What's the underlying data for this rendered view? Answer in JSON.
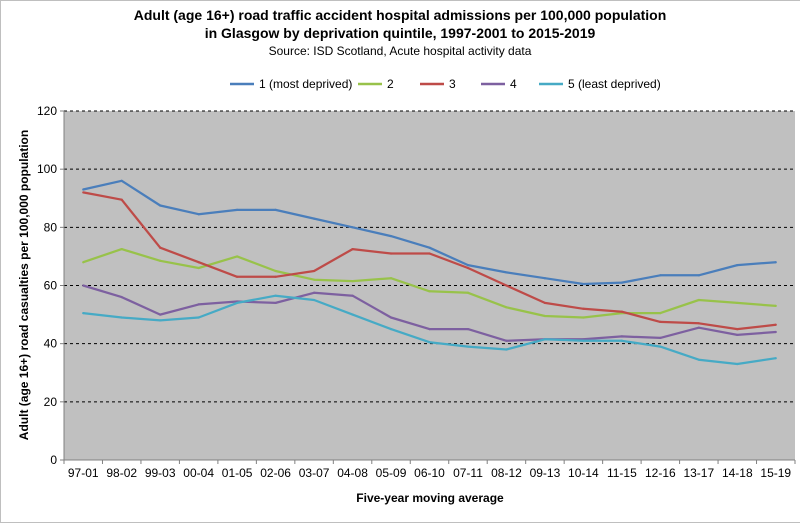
{
  "chart_data": {
    "type": "line",
    "title_line1": "Adult (age 16+) road traffic accident hospital admissions per 100,000 population",
    "title_line2": "in Glasgow by deprivation quintile, 1997-2001 to 2015-2019",
    "subtitle": "Source: ISD Scotland, Acute hospital activity data",
    "xlabel": "Five-year moving average",
    "ylabel": "Adult (age 16+) road casualties per 100,000 population",
    "ylim": [
      0,
      120
    ],
    "yticks": [
      0,
      20,
      40,
      60,
      80,
      100,
      120
    ],
    "grid": true,
    "legend_position": "top",
    "categories": [
      "97-01",
      "98-02",
      "99-03",
      "00-04",
      "01-05",
      "02-06",
      "03-07",
      "04-08",
      "05-09",
      "06-10",
      "07-11",
      "08-12",
      "09-13",
      "10-14",
      "11-15",
      "12-16",
      "13-17",
      "14-18",
      "15-19"
    ],
    "series": [
      {
        "name": "1 (most deprived)",
        "color": "#4a7ebb",
        "values": [
          93,
          96,
          87.5,
          84.5,
          86,
          86,
          83,
          80,
          77,
          73,
          67,
          64.5,
          62.5,
          60.5,
          61,
          63.5,
          63.5,
          67,
          68
        ]
      },
      {
        "name": "2",
        "color": "#98c24a",
        "values": [
          68,
          72.5,
          68.5,
          66,
          70,
          65,
          62,
          61.5,
          62.5,
          58,
          57.5,
          52.5,
          49.5,
          49,
          50.5,
          50.5,
          55,
          54,
          53
        ]
      },
      {
        "name": "3",
        "color": "#be4b48",
        "values": [
          92,
          89.5,
          73,
          68,
          63,
          63,
          65,
          72.5,
          71,
          71,
          66,
          60,
          54,
          52,
          51,
          47.5,
          47,
          45,
          46.5
        ]
      },
      {
        "name": "4",
        "color": "#7d60a0",
        "values": [
          60,
          56,
          50,
          53.5,
          54.5,
          54,
          57.5,
          56.5,
          49,
          45,
          45,
          41,
          41.5,
          41.5,
          42.5,
          42,
          45.5,
          43,
          44
        ]
      },
      {
        "name": "5 (least deprived)",
        "color": "#46aac5",
        "values": [
          50.5,
          49,
          48,
          49,
          54,
          56.5,
          55,
          50,
          45,
          40.5,
          39,
          38,
          41.5,
          41,
          41,
          39,
          34.5,
          33,
          35
        ]
      }
    ]
  }
}
